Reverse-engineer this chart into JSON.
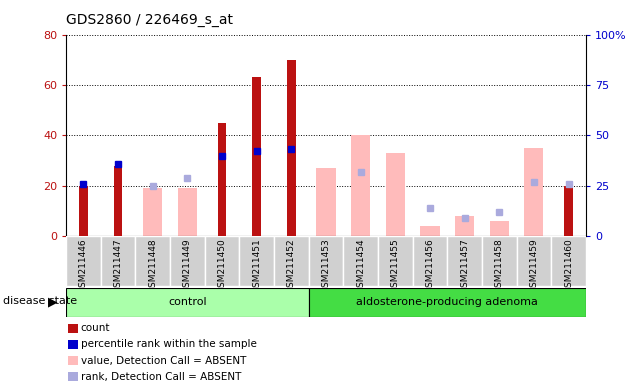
{
  "title": "GDS2860 / 226469_s_at",
  "samples": [
    "GSM211446",
    "GSM211447",
    "GSM211448",
    "GSM211449",
    "GSM211450",
    "GSM211451",
    "GSM211452",
    "GSM211453",
    "GSM211454",
    "GSM211455",
    "GSM211456",
    "GSM211457",
    "GSM211458",
    "GSM211459",
    "GSM211460"
  ],
  "count": [
    20,
    28,
    0,
    0,
    45,
    63,
    70,
    0,
    0,
    0,
    0,
    0,
    0,
    0,
    20
  ],
  "percentile_rank": [
    26,
    36,
    null,
    null,
    40,
    42,
    43,
    null,
    null,
    null,
    null,
    null,
    null,
    null,
    null
  ],
  "value_absent": [
    null,
    null,
    19,
    19,
    null,
    null,
    null,
    27,
    40,
    33,
    4,
    8,
    6,
    35,
    null
  ],
  "rank_absent": [
    null,
    null,
    25,
    29,
    null,
    null,
    null,
    null,
    32,
    null,
    14,
    9,
    12,
    27,
    26
  ],
  "control_count": 7,
  "adenoma_count": 8,
  "ylim_left": [
    0,
    80
  ],
  "ylim_right": [
    0,
    100
  ],
  "left_ticks": [
    0,
    20,
    40,
    60,
    80
  ],
  "right_ticks": [
    0,
    25,
    50,
    75,
    100
  ],
  "bar_color_count": "#bb1111",
  "bar_color_value_absent": "#ffbbbb",
  "dot_color_percentile": "#0000cc",
  "dot_color_rank_absent": "#aaaadd",
  "control_bg": "#aaffaa",
  "adenoma_bg": "#44dd44",
  "legend_items": [
    "count",
    "percentile rank within the sample",
    "value, Detection Call = ABSENT",
    "rank, Detection Call = ABSENT"
  ],
  "legend_colors": [
    "#bb1111",
    "#0000cc",
    "#ffbbbb",
    "#aaaadd"
  ]
}
